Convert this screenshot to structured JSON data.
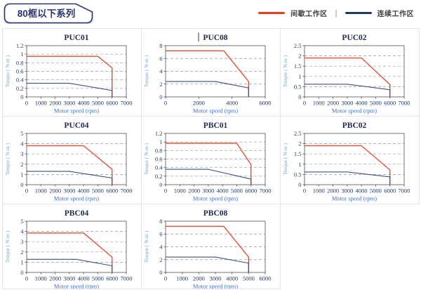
{
  "header": {
    "title": "80框以下系列",
    "legend": [
      {
        "name": "intermittent-zone",
        "label": "间歇工作区",
        "color": "#e23e1f"
      },
      {
        "name": "continuous-zone",
        "label": "连续工作区",
        "color": "#1f3864"
      }
    ],
    "legend_separator": "|"
  },
  "colors": {
    "title_box_border": "#28356e",
    "title_text": "#28356e",
    "plot_border": "#4d4d4d",
    "grid_dash": "#999999",
    "tick_text": "#243c64",
    "xlabel_text": "#3f6fc1",
    "ylabel_text": "#7aa3d4",
    "cell_border": "#e2e2e7"
  },
  "chart_data": [
    {
      "type": "line",
      "title": "PUC01",
      "caret": false,
      "xlabel": "Motor speed (rpm)",
      "ylabel": "Torque ( N-m )",
      "xlim": [
        0,
        7000
      ],
      "ylim": [
        0,
        1.2
      ],
      "xticks": [
        0,
        1000,
        2000,
        3000,
        4000,
        5000,
        6000,
        7000
      ],
      "yticks": [
        0,
        0.2,
        0.4,
        0.6,
        0.8,
        1,
        1.2
      ],
      "grid": "horizontal-dashed",
      "legend_position": "none",
      "series": [
        {
          "name": "间歇工作区",
          "color": "#e25038",
          "points": [
            [
              0,
              0.95
            ],
            [
              5000,
              0.95
            ],
            [
              6000,
              0.68
            ],
            [
              6000,
              0
            ]
          ]
        },
        {
          "name": "连续工作区",
          "color": "#3d4f7e",
          "points": [
            [
              0,
              0.32
            ],
            [
              3000,
              0.32
            ],
            [
              6000,
              0.15
            ],
            [
              6000,
              0
            ]
          ]
        }
      ]
    },
    {
      "type": "line",
      "title": "PUC08",
      "caret": true,
      "xlabel": "Motor speed (rpm)",
      "ylabel": "Torque ( N-m )",
      "xlim": [
        0,
        6000
      ],
      "ylim": [
        0,
        8
      ],
      "xticks": [
        0,
        2000,
        4000,
        6000
      ],
      "yticks": [
        0,
        2,
        4,
        6,
        8
      ],
      "grid": "horizontal-dashed",
      "legend_position": "none",
      "series": [
        {
          "name": "间歇工作区",
          "color": "#e25038",
          "points": [
            [
              0,
              7.2
            ],
            [
              3500,
              7.2
            ],
            [
              5000,
              2.4
            ],
            [
              5000,
              0
            ]
          ]
        },
        {
          "name": "连续工作区",
          "color": "#3d4f7e",
          "points": [
            [
              0,
              2.4
            ],
            [
              3000,
              2.4
            ],
            [
              5000,
              1.4
            ],
            [
              5000,
              0
            ]
          ]
        }
      ]
    },
    {
      "type": "line",
      "title": "PUC02",
      "caret": false,
      "xlabel": "Motor speed (rpm)",
      "ylabel": "Torque ( N-m )",
      "xlim": [
        0,
        7000
      ],
      "ylim": [
        0,
        2.5
      ],
      "xticks": [
        0,
        1000,
        2000,
        3000,
        4000,
        5000,
        6000,
        7000
      ],
      "yticks": [
        0,
        0.5,
        1,
        1.5,
        2,
        2.5
      ],
      "grid": "horizontal-dashed",
      "legend_position": "none",
      "series": [
        {
          "name": "间歇工作区",
          "color": "#e25038",
          "points": [
            [
              0,
              1.9
            ],
            [
              4000,
              1.9
            ],
            [
              6000,
              0.6
            ],
            [
              6000,
              0
            ]
          ]
        },
        {
          "name": "连续工作区",
          "color": "#3d4f7e",
          "points": [
            [
              0,
              0.62
            ],
            [
              3000,
              0.62
            ],
            [
              6000,
              0.35
            ],
            [
              6000,
              0
            ]
          ]
        }
      ]
    },
    {
      "type": "line",
      "title": "PUC04",
      "caret": false,
      "xlabel": "Motor speed (rpm)",
      "ylabel": "Torque ( N-m )",
      "xlim": [
        0,
        7000
      ],
      "ylim": [
        0,
        5
      ],
      "xticks": [
        0,
        1000,
        2000,
        3000,
        4000,
        5000,
        6000,
        7000
      ],
      "yticks": [
        0,
        1,
        2,
        3,
        4,
        5
      ],
      "grid": "horizontal-dashed",
      "legend_position": "none",
      "series": [
        {
          "name": "间歇工作区",
          "color": "#e25038",
          "points": [
            [
              0,
              3.8
            ],
            [
              4000,
              3.8
            ],
            [
              6000,
              1.5
            ],
            [
              6000,
              0
            ]
          ]
        },
        {
          "name": "连续工作区",
          "color": "#3d4f7e",
          "points": [
            [
              0,
              1.3
            ],
            [
              3000,
              1.3
            ],
            [
              6000,
              0.65
            ],
            [
              6000,
              0
            ]
          ]
        }
      ]
    },
    {
      "type": "line",
      "title": "PBC01",
      "caret": false,
      "xlabel": "Motor speed (rpm)",
      "ylabel": "Torque ( N-m )",
      "xlim": [
        0,
        7000
      ],
      "ylim": [
        0,
        1.2
      ],
      "xticks": [
        0,
        1000,
        2000,
        3000,
        4000,
        5000,
        6000,
        7000
      ],
      "yticks": [
        0,
        0.2,
        0.4,
        0.6,
        0.8,
        1,
        1.2
      ],
      "grid": "horizontal-dashed",
      "legend_position": "none",
      "series": [
        {
          "name": "间歇工作区",
          "color": "#e25038",
          "points": [
            [
              0,
              0.97
            ],
            [
              5000,
              0.97
            ],
            [
              6000,
              0.47
            ],
            [
              6000,
              0
            ]
          ]
        },
        {
          "name": "连续工作区",
          "color": "#3d4f7e",
          "points": [
            [
              0,
              0.36
            ],
            [
              3000,
              0.36
            ],
            [
              6000,
              0.13
            ],
            [
              6000,
              0
            ]
          ]
        }
      ]
    },
    {
      "type": "line",
      "title": "PBC02",
      "caret": false,
      "xlabel": "Motor speed (rpm)",
      "ylabel": "Torque ( N-m )",
      "xlim": [
        0,
        7000
      ],
      "ylim": [
        0,
        2.5
      ],
      "xticks": [
        0,
        1000,
        2000,
        3000,
        4000,
        5000,
        6000,
        7000
      ],
      "yticks": [
        0,
        0.5,
        1,
        1.5,
        2,
        2.5
      ],
      "grid": "horizontal-dashed",
      "legend_position": "none",
      "series": [
        {
          "name": "间歇工作区",
          "color": "#e25038",
          "points": [
            [
              0,
              1.9
            ],
            [
              4000,
              1.9
            ],
            [
              6000,
              0.72
            ],
            [
              6000,
              0
            ]
          ]
        },
        {
          "name": "连续工作区",
          "color": "#3d4f7e",
          "points": [
            [
              0,
              0.62
            ],
            [
              3000,
              0.62
            ],
            [
              6000,
              0.38
            ],
            [
              6000,
              0
            ]
          ]
        }
      ]
    },
    {
      "type": "line",
      "title": "PBC04",
      "caret": false,
      "xlabel": "Motor speed (rpm)",
      "ylabel": "Torque ( N-m )",
      "xlim": [
        0,
        7000
      ],
      "ylim": [
        0,
        5
      ],
      "xticks": [
        0,
        1000,
        2000,
        3000,
        4000,
        5000,
        6000,
        7000
      ],
      "yticks": [
        0,
        1,
        2,
        3,
        4,
        5
      ],
      "grid": "horizontal-dashed",
      "legend_position": "none",
      "series": [
        {
          "name": "间歇工作区",
          "color": "#e25038",
          "points": [
            [
              0,
              3.85
            ],
            [
              4000,
              3.85
            ],
            [
              6000,
              1.5
            ],
            [
              6000,
              0
            ]
          ]
        },
        {
          "name": "连续工作区",
          "color": "#3d4f7e",
          "points": [
            [
              0,
              1.28
            ],
            [
              3500,
              1.28
            ],
            [
              6000,
              0.65
            ],
            [
              6000,
              0
            ]
          ]
        }
      ]
    },
    {
      "type": "line",
      "title": "PBC08",
      "caret": false,
      "xlabel": "Motor speed (rpm)",
      "ylabel": "Torque ( N-m )",
      "xlim": [
        0,
        6000
      ],
      "ylim": [
        0,
        8
      ],
      "xticks": [
        0,
        1000,
        2000,
        3000,
        4000,
        5000,
        6000
      ],
      "yticks": [
        0,
        2,
        4,
        6,
        8
      ],
      "grid": "horizontal-dashed",
      "legend_position": "none",
      "series": [
        {
          "name": "间歇工作区",
          "color": "#e25038",
          "points": [
            [
              0,
              7.2
            ],
            [
              3500,
              7.2
            ],
            [
              5000,
              2.4
            ],
            [
              5000,
              0
            ]
          ]
        },
        {
          "name": "连续工作区",
          "color": "#3d4f7e",
          "points": [
            [
              0,
              2.4
            ],
            [
              3000,
              2.4
            ],
            [
              5000,
              1.45
            ],
            [
              5000,
              0
            ]
          ]
        }
      ]
    }
  ]
}
